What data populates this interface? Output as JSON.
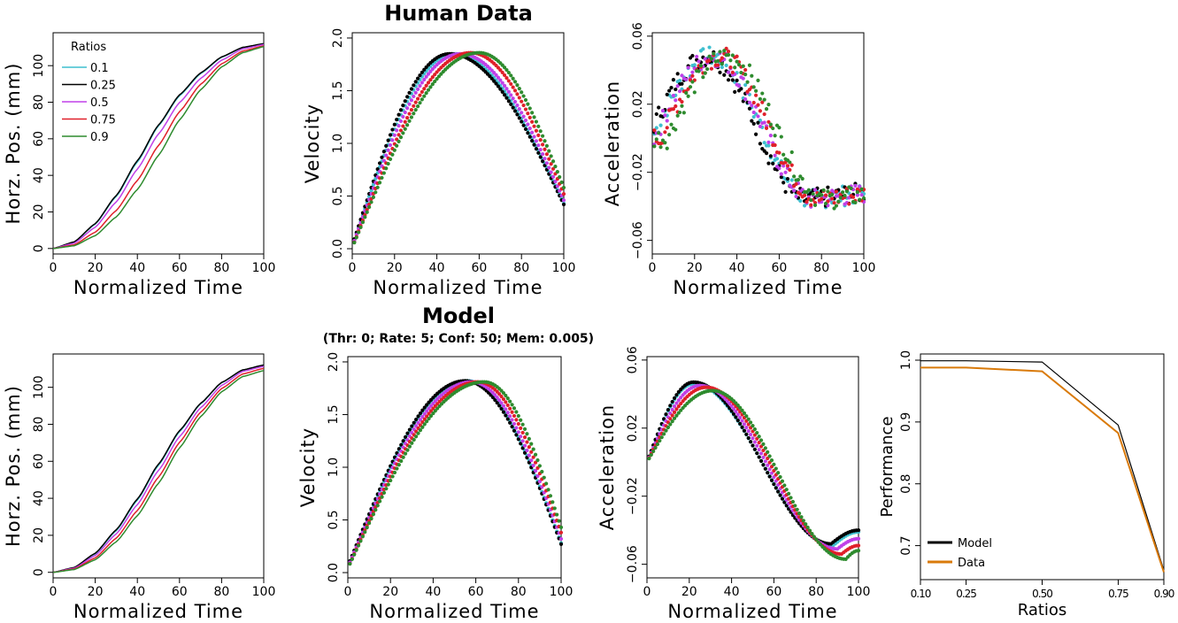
{
  "sections": {
    "top_title": "Human Data",
    "bottom_title": "Model",
    "bottom_subtitle": "(Thr: 0; Rate: 5; Conf: 50; Mem: 0.005)"
  },
  "colors": {
    "0.1": "#3fbfcf",
    "0.25": "#000000",
    "0.5": "#c040e8",
    "0.75": "#e0202a",
    "0.9": "#2e8b2e",
    "model_line": "#000000",
    "data_line": "#d97a0a"
  },
  "chart_data": [
    {
      "type": "line",
      "panel": "human-position",
      "xlabel": "Normalized Time",
      "ylabel": "Horz. Pos. (mm)",
      "xlim": [
        0,
        100
      ],
      "ylim": [
        -3,
        118
      ],
      "xticks": [
        "0",
        "20",
        "40",
        "60",
        "80",
        "100"
      ],
      "yticks": [
        "0",
        "20",
        "40",
        "60",
        "80",
        "100"
      ],
      "legend": {
        "title": "Ratios",
        "placement": "top-left",
        "entries": [
          "0.1",
          "0.25",
          "0.5",
          "0.75",
          "0.9"
        ]
      },
      "x": [
        0,
        10,
        20,
        30,
        40,
        50,
        60,
        70,
        80,
        90,
        100
      ],
      "series": [
        {
          "name": "0.1",
          "values": [
            0,
            3.5,
            13.3,
            28.5,
            47.3,
            67.0,
            83.5,
            95.6,
            104.6,
            109.9,
            112.0
          ]
        },
        {
          "name": "0.25",
          "values": [
            0,
            3.6,
            13.6,
            29.0,
            48.0,
            67.5,
            84.0,
            96.0,
            104.8,
            110.0,
            112.0
          ]
        },
        {
          "name": "0.5",
          "values": [
            0,
            2.9,
            11.6,
            25.5,
            43.4,
            62.6,
            79.8,
            93.0,
            103.0,
            109.2,
            111.5
          ]
        },
        {
          "name": "0.75",
          "values": [
            0,
            2.0,
            8.9,
            20.8,
            37.2,
            56.3,
            74.8,
            89.8,
            101.0,
            108.0,
            110.8
          ]
        },
        {
          "name": "0.9",
          "values": [
            0,
            1.5,
            7.0,
            17.3,
            32.3,
            50.9,
            70.3,
            86.8,
            99.3,
            107.1,
            110.4
          ]
        }
      ]
    },
    {
      "type": "scatter",
      "panel": "human-velocity",
      "xlabel": "Normalized Time",
      "ylabel": "Velocity",
      "xlim": [
        0,
        100
      ],
      "ylim": [
        -0.05,
        2.05
      ],
      "xticks": [
        "0",
        "20",
        "40",
        "60",
        "80",
        "100"
      ],
      "yticks": [
        "0.0",
        "0.5",
        "1.0",
        "1.5",
        "2.0"
      ],
      "series": [
        {
          "name": "0.1",
          "peak_x": 48,
          "peak_y": 1.85,
          "start_y": 0.02,
          "end_y": 0.43
        },
        {
          "name": "0.25",
          "peak_x": 46,
          "peak_y": 1.85,
          "start_y": 0.03,
          "end_y": 0.42
        },
        {
          "name": "0.5",
          "peak_x": 51,
          "peak_y": 1.85,
          "start_y": 0.02,
          "end_y": 0.46
        },
        {
          "name": "0.75",
          "peak_x": 56,
          "peak_y": 1.86,
          "start_y": 0.01,
          "end_y": 0.52
        },
        {
          "name": "0.9",
          "peak_x": 60,
          "peak_y": 1.86,
          "start_y": 0.01,
          "end_y": 0.58
        }
      ]
    },
    {
      "type": "scatter",
      "panel": "human-acceleration",
      "xlabel": "Normalized Time",
      "ylabel": "Acceleration",
      "xlim": [
        0,
        100
      ],
      "ylim": [
        -0.068,
        0.062
      ],
      "xticks": [
        "0",
        "20",
        "40",
        "60",
        "80",
        "100"
      ],
      "yticks": [
        "−0.06",
        "−0.02",
        "0.02",
        "0.06"
      ],
      "series": [
        {
          "name": "0.1",
          "shift": 0
        },
        {
          "name": "0.25",
          "shift": -2
        },
        {
          "name": "0.5",
          "shift": 1
        },
        {
          "name": "0.75",
          "shift": 4
        },
        {
          "name": "0.9",
          "shift": 7
        }
      ]
    },
    {
      "type": "line",
      "panel": "model-position",
      "xlabel": "Normalized Time",
      "ylabel": "Horz. Pos. (mm)",
      "xlim": [
        0,
        100
      ],
      "ylim": [
        -3,
        118
      ],
      "xticks": [
        "0",
        "20",
        "40",
        "60",
        "80",
        "100"
      ],
      "yticks": [
        "0",
        "20",
        "40",
        "60",
        "80",
        "100"
      ],
      "x": [
        0,
        10,
        20,
        30,
        40,
        50,
        60,
        70,
        80,
        90,
        100
      ],
      "series": [
        {
          "name": "0.1",
          "values": [
            0,
            2.5,
            10.0,
            22.5,
            39.0,
            57.8,
            76.0,
            91.0,
            102.5,
            109.3,
            112.0
          ]
        },
        {
          "name": "0.25",
          "values": [
            0,
            2.6,
            10.3,
            23.0,
            39.6,
            58.4,
            76.5,
            91.3,
            102.6,
            109.4,
            112.0
          ]
        },
        {
          "name": "0.5",
          "values": [
            0,
            2.2,
            9.1,
            20.8,
            36.6,
            55.0,
            73.3,
            88.9,
            101.0,
            108.6,
            111.3
          ]
        },
        {
          "name": "0.75",
          "values": [
            0,
            1.8,
            7.8,
            18.5,
            33.4,
            51.4,
            70.2,
            86.5,
            99.3,
            107.2,
            110.2
          ]
        },
        {
          "name": "0.9",
          "values": [
            0,
            1.5,
            6.8,
            16.5,
            30.6,
            48.1,
            67.2,
            84.1,
            97.6,
            105.8,
            109.0
          ]
        }
      ]
    },
    {
      "type": "scatter",
      "panel": "model-velocity",
      "xlabel": "Normalized Time",
      "ylabel": "Velocity",
      "xlim": [
        0,
        100
      ],
      "ylim": [
        -0.05,
        2.05
      ],
      "xticks": [
        "0",
        "20",
        "40",
        "60",
        "80",
        "100"
      ],
      "yticks": [
        "0.0",
        "0.5",
        "1.0",
        "1.5",
        "2.0"
      ],
      "series": [
        {
          "name": "0.1",
          "peak_x": 56,
          "peak_y": 1.82,
          "start_y": 0.06,
          "end_y": 0.28
        },
        {
          "name": "0.25",
          "peak_x": 55,
          "peak_y": 1.82,
          "start_y": 0.06,
          "end_y": 0.27
        },
        {
          "name": "0.5",
          "peak_x": 58,
          "peak_y": 1.81,
          "start_y": 0.05,
          "end_y": 0.32
        },
        {
          "name": "0.75",
          "peak_x": 61,
          "peak_y": 1.81,
          "start_y": 0.04,
          "end_y": 0.38
        },
        {
          "name": "0.9",
          "peak_x": 64,
          "peak_y": 1.81,
          "start_y": 0.04,
          "end_y": 0.43
        }
      ]
    },
    {
      "type": "scatter",
      "panel": "model-acceleration",
      "xlabel": "Normalized Time",
      "ylabel": "Acceleration",
      "xlim": [
        0,
        100
      ],
      "ylim": [
        -0.068,
        0.062
      ],
      "xticks": [
        "0",
        "20",
        "40",
        "60",
        "80",
        "100"
      ],
      "yticks": [
        "−0.06",
        "−0.02",
        "0.02",
        "0.06"
      ],
      "series": [
        {
          "name": "0.1",
          "peak_x": 22,
          "peak_y": 0.046,
          "trough_x": 88,
          "trough_y": -0.049,
          "end_y": -0.041
        },
        {
          "name": "0.25",
          "peak_x": 22,
          "peak_y": 0.047,
          "trough_x": 87,
          "trough_y": -0.048,
          "end_y": -0.04
        },
        {
          "name": "0.5",
          "peak_x": 25,
          "peak_y": 0.045,
          "trough_x": 90,
          "trough_y": -0.051,
          "end_y": -0.045
        },
        {
          "name": "0.75",
          "peak_x": 28,
          "peak_y": 0.044,
          "trough_x": 92,
          "trough_y": -0.054,
          "end_y": -0.049
        },
        {
          "name": "0.9",
          "peak_x": 31,
          "peak_y": 0.042,
          "trough_x": 94,
          "trough_y": -0.057,
          "end_y": -0.052
        }
      ]
    },
    {
      "type": "line",
      "panel": "performance",
      "xlabel": "Ratios",
      "ylabel": "Performance",
      "xlim": [
        0.1,
        0.9
      ],
      "ylim": [
        0.645,
        1.01
      ],
      "xticks": [
        "0.10",
        "0.25",
        "0.50",
        "0.75",
        "0.90"
      ],
      "yticks": [
        "0.7",
        "0.8",
        "0.9",
        "1.0"
      ],
      "legend": {
        "placement": "bottom-left",
        "entries": [
          "Model",
          "Data"
        ]
      },
      "x": [
        0.1,
        0.25,
        0.5,
        0.75,
        0.9
      ],
      "series": [
        {
          "name": "Model",
          "values": [
            0.999,
            0.999,
            0.997,
            0.895,
            0.66
          ]
        },
        {
          "name": "Data",
          "values": [
            0.988,
            0.988,
            0.982,
            0.882,
            0.657
          ]
        }
      ]
    }
  ]
}
